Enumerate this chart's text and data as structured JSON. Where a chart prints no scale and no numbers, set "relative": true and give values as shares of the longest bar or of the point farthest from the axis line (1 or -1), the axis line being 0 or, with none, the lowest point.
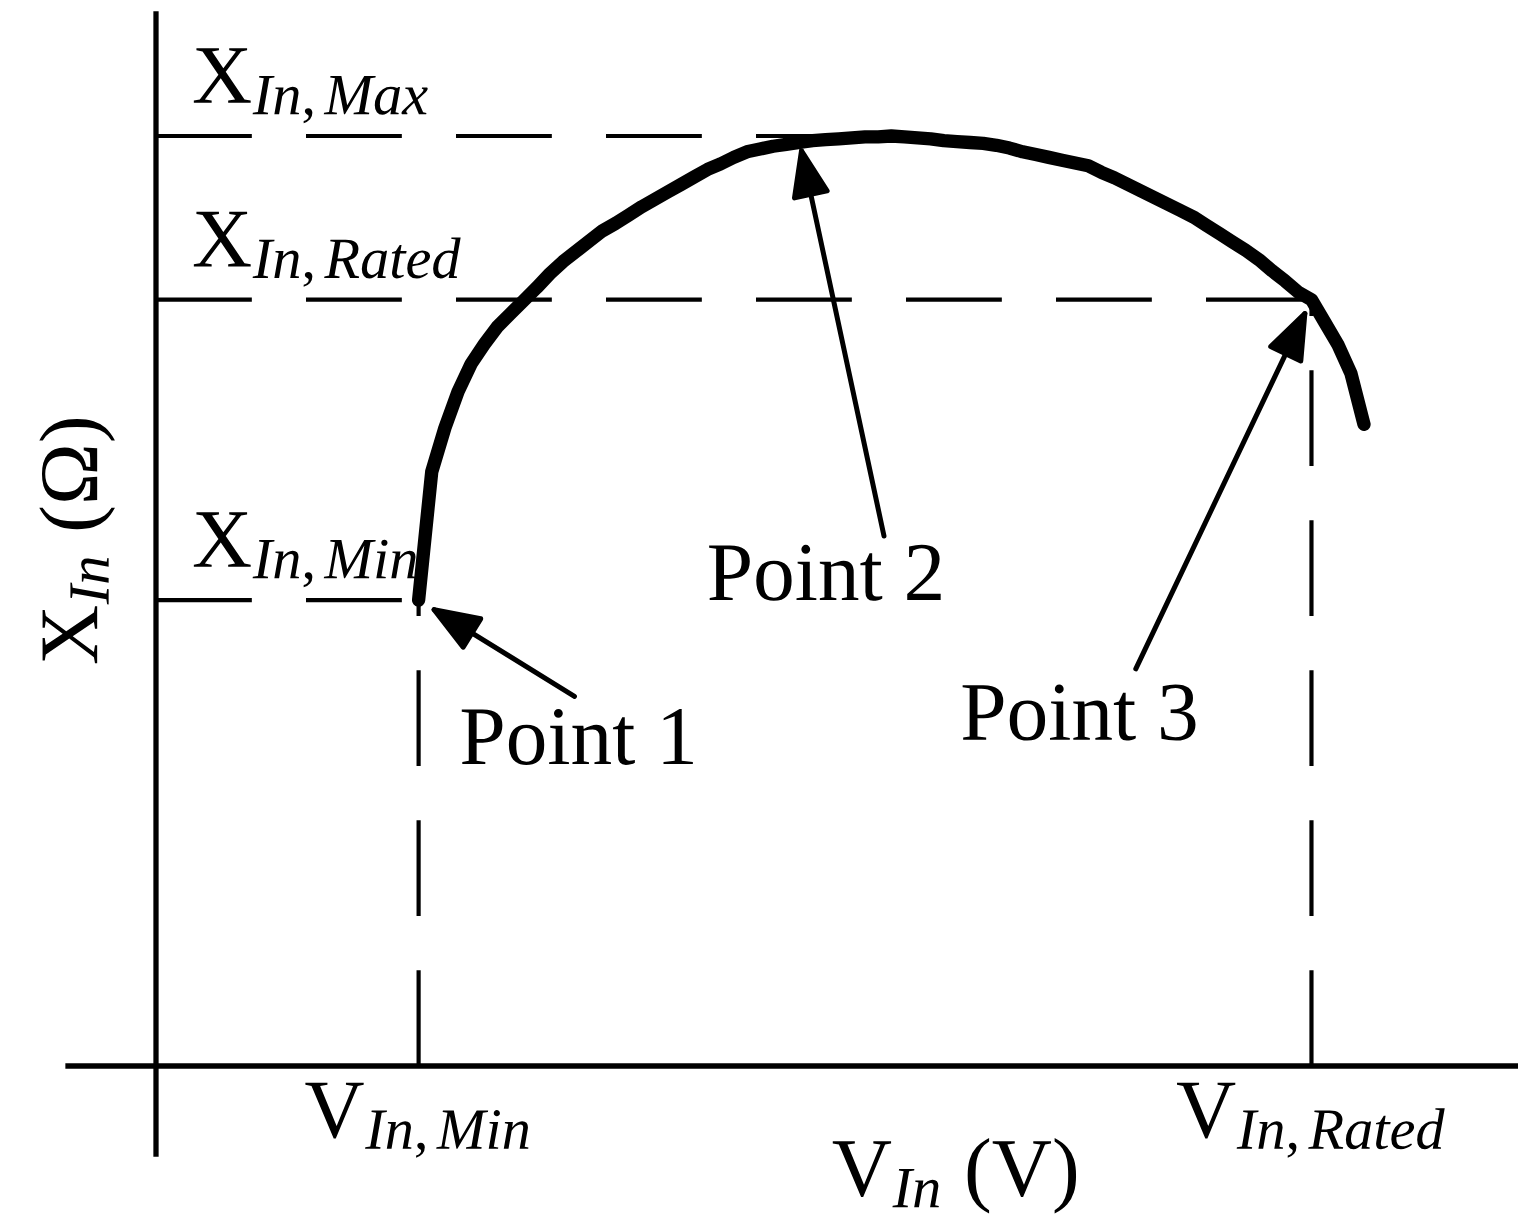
{
  "chart_data": {
    "type": "line",
    "relative": true,
    "xlabel": "V$_{In}$ (V)",
    "ylabel": "X$_{In}$ (Ω)",
    "categories": [
      null,
      null,
      null,
      null,
      null,
      null,
      null,
      null,
      null,
      null,
      null,
      null,
      null,
      null,
      null,
      null,
      null,
      null,
      null,
      null,
      "V$_{In,Min}$",
      null,
      null,
      null,
      null,
      null,
      null,
      null,
      null,
      null,
      null,
      null,
      null,
      null,
      null,
      null,
      null,
      null,
      null,
      null,
      null,
      null,
      null,
      null,
      null,
      null,
      null,
      null,
      null,
      null,
      null,
      null,
      null,
      null,
      null,
      null,
      null,
      null,
      null,
      null,
      null,
      null,
      null,
      null,
      null,
      null,
      null,
      null,
      null,
      null,
      null,
      null,
      null,
      null,
      null,
      null,
      null,
      null,
      null,
      null,
      null,
      null,
      null,
      null,
      null,
      null,
      null,
      null,
      "V$_{In,Rated}$",
      null,
      null,
      null,
      null
    ],
    "series": [
      {
        "color": "#000000",
        "values": [
          null,
          null,
          null,
          null,
          null,
          null,
          null,
          null,
          null,
          null,
          null,
          null,
          null,
          null,
          null,
          null,
          null,
          null,
          null,
          null,
          0.501,
          0.639,
          0.686,
          0.725,
          0.755,
          0.776,
          0.795,
          0.809,
          0.823,
          0.837,
          0.852,
          0.865,
          0.876,
          0.887,
          0.898,
          0.906,
          0.915,
          0.924,
          0.932,
          0.94,
          0.948,
          0.956,
          0.964,
          0.97,
          0.977,
          0.983,
          0.986,
          0.989,
          0.991,
          0.993,
          0.995,
          0.996,
          0.997,
          0.998,
          0.999,
          0.999,
          1.0,
          0.999,
          0.998,
          0.997,
          0.995,
          0.994,
          0.993,
          0.992,
          0.99,
          0.987,
          0.983,
          0.98,
          0.977,
          0.974,
          0.971,
          0.968,
          0.961,
          0.955,
          0.948,
          0.941,
          0.934,
          0.927,
          0.92,
          0.913,
          0.904,
          0.895,
          0.886,
          0.877,
          0.867,
          0.855,
          0.844,
          0.832,
          0.824,
          0.8,
          0.776,
          0.745,
          0.69
        ]
      }
    ],
    "ref_lines": [
      {
        "axis": "y",
        "value": 1.0,
        "label": "X$_{In,Max}$",
        "color": "#000000",
        "line_style": "dashed"
      },
      {
        "axis": "y",
        "value": 0.824,
        "label": "X$_{In,Rated}$",
        "color": "#000000",
        "line_style": "dashed"
      },
      {
        "axis": "y",
        "value": 0.501,
        "label": "X$_{In,Min}$",
        "color": "#000000",
        "line_style": "dashed"
      },
      {
        "axis": "x",
        "value": "V$_{In,Min}$",
        "color": "#000000",
        "line_style": "dashed"
      },
      {
        "axis": "x",
        "value": "V$_{In,Rated}$",
        "color": "#000000",
        "line_style": "dashed"
      }
    ],
    "annotations": [
      {
        "text": "Point 1",
        "x": "V$_{In,Min}$",
        "y": 0.501
      },
      "Point 2",
      {
        "text": "Point 3",
        "x": "V$_{In,Rated}$",
        "y": 0.824
      }
    ]
  }
}
